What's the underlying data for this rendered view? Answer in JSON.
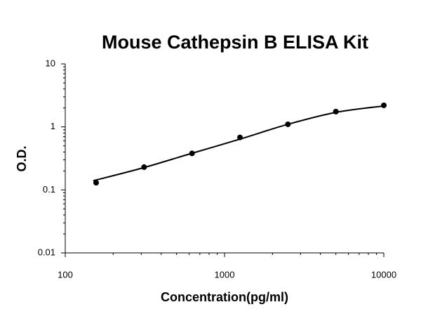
{
  "chart_data": {
    "type": "scatter",
    "title": "Mouse Cathepsin B ELISA Kit",
    "x_label": "Concentration(pg/ml)",
    "y_label": "O.D.",
    "xscale": "log",
    "yscale": "log",
    "x": [
      156.25,
      312.5,
      625,
      1250,
      2500,
      5000,
      10000
    ],
    "values": [
      0.13,
      0.23,
      0.38,
      0.68,
      1.1,
      1.75,
      2.2
    ],
    "fit_x": [
      150,
      300,
      600,
      1250,
      2500,
      5000,
      10000
    ],
    "fit_values": [
      0.14,
      0.22,
      0.37,
      0.64,
      1.1,
      1.7,
      2.15
    ],
    "color": "#000000",
    "xlim": [
      100,
      10000
    ],
    "ylim": [
      0.01,
      10
    ],
    "xticks": [
      100,
      1000,
      10000
    ],
    "yticks": [
      0.01,
      0.1,
      1,
      10
    ]
  }
}
